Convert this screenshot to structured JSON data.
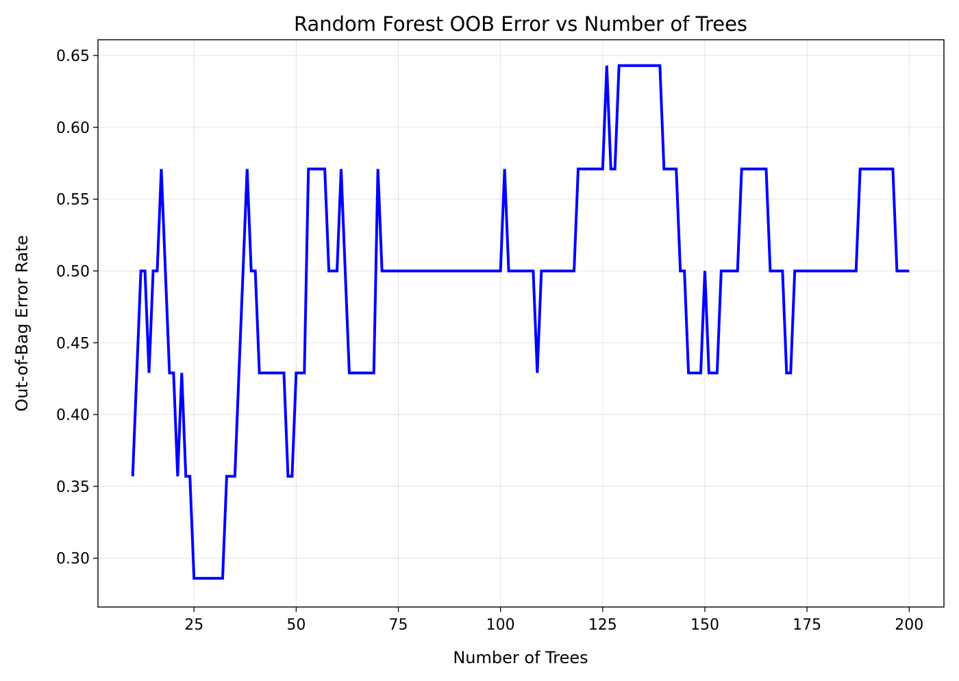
{
  "chart_data": {
    "type": "line",
    "title": "Random Forest OOB Error vs Number of Trees",
    "xlabel": "Number of Trees",
    "ylabel": "Out-of-Bag Error Rate",
    "xlim": [
      1.5,
      208.5
    ],
    "ylim": [
      0.266,
      0.661
    ],
    "xticks": [
      25,
      50,
      75,
      100,
      125,
      150,
      175,
      200
    ],
    "xtick_labels": [
      "25",
      "50",
      "75",
      "100",
      "125",
      "150",
      "175",
      "200"
    ],
    "yticks": [
      0.3,
      0.35,
      0.4,
      0.45,
      0.5,
      0.55,
      0.6,
      0.65
    ],
    "ytick_labels": [
      "0.30",
      "0.35",
      "0.40",
      "0.45",
      "0.50",
      "0.55",
      "0.60",
      "0.65"
    ],
    "grid": true,
    "series": [
      {
        "color": "#0000ff",
        "x": [
          10,
          11,
          12,
          13,
          14,
          15,
          16,
          17,
          18,
          19,
          20,
          21,
          22,
          23,
          24,
          25,
          26,
          27,
          28,
          29,
          30,
          31,
          32,
          33,
          34,
          35,
          36,
          37,
          38,
          39,
          40,
          41,
          42,
          43,
          44,
          45,
          46,
          47,
          48,
          49,
          50,
          51,
          52,
          53,
          54,
          55,
          56,
          57,
          58,
          59,
          60,
          61,
          62,
          63,
          64,
          65,
          66,
          67,
          68,
          69,
          70,
          71,
          72,
          73,
          74,
          75,
          76,
          77,
          78,
          79,
          80,
          81,
          82,
          83,
          84,
          85,
          86,
          87,
          88,
          89,
          90,
          91,
          92,
          93,
          94,
          95,
          96,
          97,
          98,
          99,
          100,
          101,
          102,
          103,
          104,
          105,
          106,
          107,
          108,
          109,
          110,
          111,
          112,
          113,
          114,
          115,
          116,
          117,
          118,
          119,
          120,
          121,
          122,
          123,
          124,
          125,
          126,
          127,
          128,
          129,
          130,
          131,
          132,
          133,
          134,
          135,
          136,
          137,
          138,
          139,
          140,
          141,
          142,
          143,
          144,
          145,
          146,
          147,
          148,
          149,
          150,
          151,
          152,
          153,
          154,
          155,
          156,
          157,
          158,
          159,
          160,
          161,
          162,
          163,
          164,
          165,
          166,
          167,
          168,
          169,
          170,
          171,
          172,
          173,
          174,
          175,
          176,
          177,
          178,
          179,
          180,
          181,
          182,
          183,
          184,
          185,
          186,
          187,
          188,
          189,
          190,
          191,
          192,
          193,
          194,
          195,
          196,
          197,
          198,
          199,
          200
        ],
        "y": [
          0.357,
          0.429,
          0.5,
          0.5,
          0.429,
          0.5,
          0.5,
          0.571,
          0.5,
          0.429,
          0.429,
          0.357,
          0.429,
          0.357,
          0.357,
          0.286,
          0.286,
          0.286,
          0.286,
          0.286,
          0.286,
          0.286,
          0.286,
          0.357,
          0.357,
          0.357,
          0.429,
          0.5,
          0.571,
          0.5,
          0.5,
          0.429,
          0.429,
          0.429,
          0.429,
          0.429,
          0.429,
          0.429,
          0.357,
          0.357,
          0.429,
          0.429,
          0.429,
          0.571,
          0.571,
          0.571,
          0.571,
          0.571,
          0.5,
          0.5,
          0.5,
          0.571,
          0.5,
          0.429,
          0.429,
          0.429,
          0.429,
          0.429,
          0.429,
          0.429,
          0.571,
          0.5,
          0.5,
          0.5,
          0.5,
          0.5,
          0.5,
          0.5,
          0.5,
          0.5,
          0.5,
          0.5,
          0.5,
          0.5,
          0.5,
          0.5,
          0.5,
          0.5,
          0.5,
          0.5,
          0.5,
          0.5,
          0.5,
          0.5,
          0.5,
          0.5,
          0.5,
          0.5,
          0.5,
          0.5,
          0.5,
          0.571,
          0.5,
          0.5,
          0.5,
          0.5,
          0.5,
          0.5,
          0.5,
          0.429,
          0.5,
          0.5,
          0.5,
          0.5,
          0.5,
          0.5,
          0.5,
          0.5,
          0.5,
          0.571,
          0.571,
          0.571,
          0.571,
          0.571,
          0.571,
          0.571,
          0.643,
          0.571,
          0.571,
          0.643,
          0.643,
          0.643,
          0.643,
          0.643,
          0.643,
          0.643,
          0.643,
          0.643,
          0.643,
          0.643,
          0.571,
          0.571,
          0.571,
          0.571,
          0.5,
          0.5,
          0.429,
          0.429,
          0.429,
          0.429,
          0.5,
          0.429,
          0.429,
          0.429,
          0.5,
          0.5,
          0.5,
          0.5,
          0.5,
          0.571,
          0.571,
          0.571,
          0.571,
          0.571,
          0.571,
          0.571,
          0.5,
          0.5,
          0.5,
          0.5,
          0.429,
          0.429,
          0.5,
          0.5,
          0.5,
          0.5,
          0.5,
          0.5,
          0.5,
          0.5,
          0.5,
          0.5,
          0.5,
          0.5,
          0.5,
          0.5,
          0.5,
          0.5,
          0.571,
          0.571,
          0.571,
          0.571,
          0.571,
          0.571,
          0.571,
          0.571,
          0.571,
          0.5,
          0.5,
          0.5,
          0.5
        ]
      }
    ]
  }
}
